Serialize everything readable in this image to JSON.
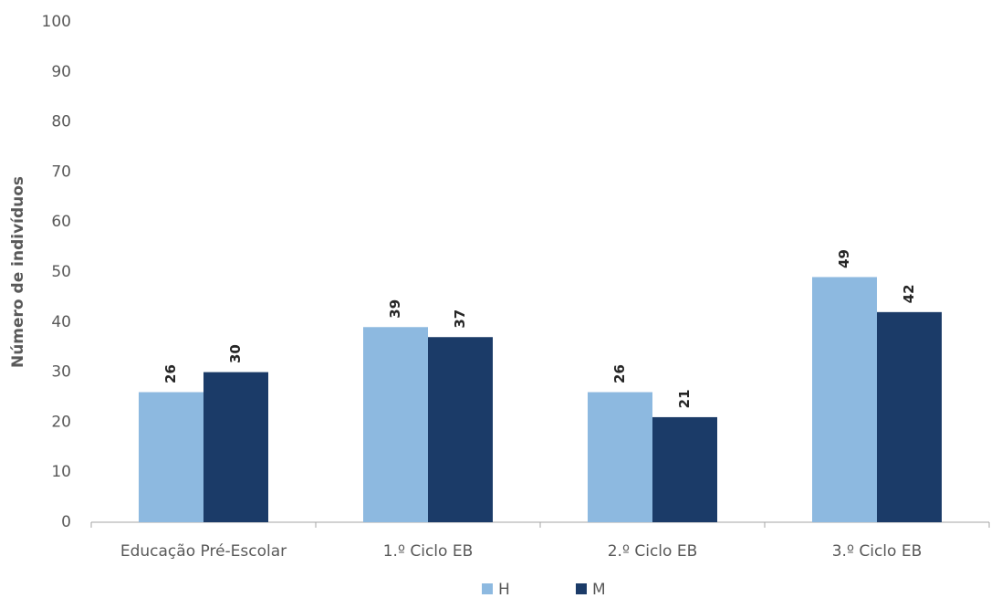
{
  "chart_data": {
    "type": "bar",
    "y_label": "Número de indivíduos",
    "categories": [
      "Educação Pré-Escolar",
      "1.º Ciclo EB",
      "2.º Ciclo EB",
      "3.º Ciclo EB"
    ],
    "series": [
      {
        "name": "H",
        "color": "#8db9e0",
        "values": [
          26,
          39,
          26,
          49
        ]
      },
      {
        "name": "M",
        "color": "#1b3b68",
        "values": [
          30,
          37,
          21,
          42
        ]
      }
    ],
    "ylim": [
      0,
      100
    ],
    "yticks": [
      0,
      10,
      20,
      30,
      40,
      50,
      60,
      70,
      80,
      90,
      100
    ],
    "grid": false,
    "legend": "bottom"
  }
}
